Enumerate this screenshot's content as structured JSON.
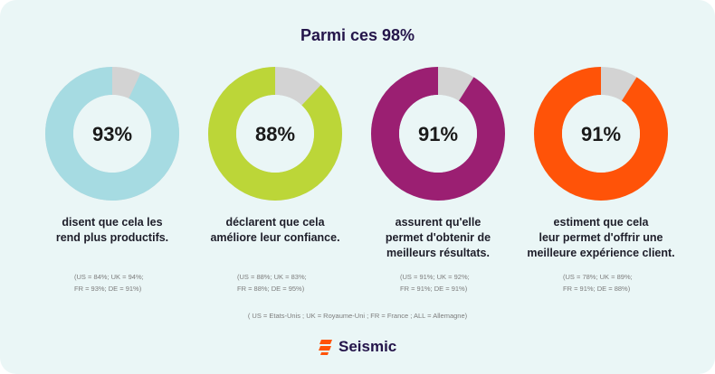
{
  "title": "Parmi ces 98%",
  "chart_data": {
    "type": "pie",
    "items": [
      {
        "value": 93,
        "label": "93%",
        "color": "#a6dbe2",
        "desc": [
          "disent que cela les",
          "rend plus productifs."
        ],
        "note": [
          "(US = 84%; UK = 94%;",
          "FR = 93%; DE = 91%)"
        ]
      },
      {
        "value": 88,
        "label": "88%",
        "color": "#bcd638",
        "desc": [
          "déclarent que cela",
          "améliore leur confiance."
        ],
        "note": [
          "(US = 88%; UK = 83%;",
          "FR = 88%; DE = 95%)"
        ]
      },
      {
        "value": 91,
        "label": "91%",
        "color": "#9b1f72",
        "desc": [
          "assurent qu'elle",
          "permet d'obtenir de",
          "meilleurs résultats."
        ],
        "note": [
          "(US = 91%; UK = 92%;",
          "FR = 91%; DE = 91%)"
        ]
      },
      {
        "value": 91,
        "label": "91%",
        "color": "#ff5308",
        "desc": [
          "estiment que cela",
          "leur permet d'offrir une",
          "meilleure expérience client."
        ],
        "note": [
          "(US = 78%; UK = 89%;",
          "FR = 91%; DE = 88%)"
        ]
      }
    ],
    "remainder_color": "#d3d3d3"
  },
  "legend": "( US = Etats-Unis ; UK = Royaume-Uni ; FR = France ; ALL = Allemagne)",
  "brand": {
    "name": "Seismic",
    "color": "#ff5308",
    "icon": "seismic-logo-icon"
  }
}
